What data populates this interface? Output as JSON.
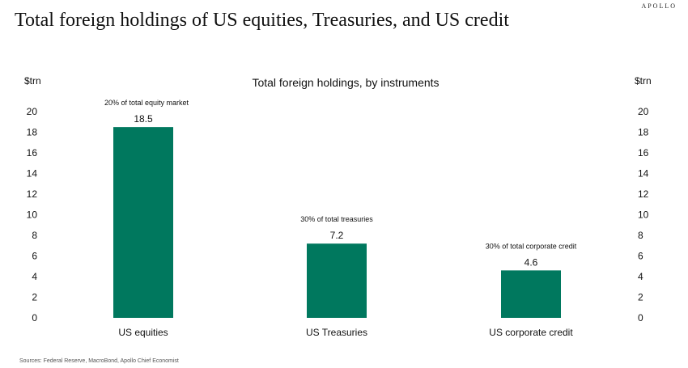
{
  "brand": "APOLLO",
  "page_title": "Total foreign holdings of US equities, Treasuries, and US credit",
  "source": "Sources: Federal Reserve, MacroBond, Apollo Chief Economist",
  "colors": {
    "bar": "#00785e"
  },
  "chart_data": {
    "type": "bar",
    "title": "Total foreign holdings, by instruments",
    "ylabel_left": "$trn",
    "ylabel_right": "$trn",
    "ylim": [
      0,
      20
    ],
    "yticks": [
      0,
      2,
      4,
      6,
      8,
      10,
      12,
      14,
      16,
      18,
      20
    ],
    "categories": [
      "US equities",
      "US Treasuries",
      "US corporate credit"
    ],
    "values": [
      18.5,
      7.2,
      4.6
    ],
    "data_labels": [
      "18.5",
      "7.2",
      "4.6"
    ],
    "annotations": [
      "20% of total equity market",
      "30% of total treasuries",
      "30% of total corporate credit"
    ],
    "grid": false,
    "legend": false
  }
}
